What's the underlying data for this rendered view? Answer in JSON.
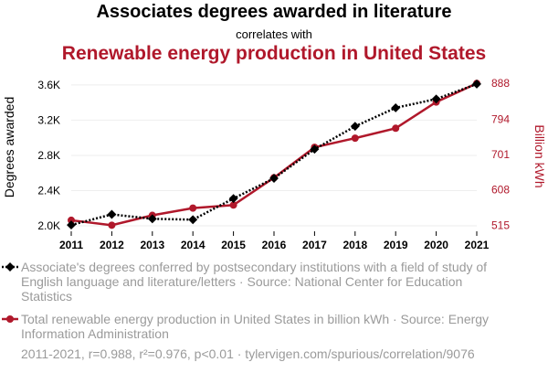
{
  "header": {
    "title": "Associates degrees awarded in literature",
    "connector": "correlates with",
    "subtitle": "Renewable energy production in United States"
  },
  "colors": {
    "series1": "#000000",
    "series2": "#b0182b",
    "legend_text": "#9a9a9a"
  },
  "chart_data": {
    "type": "line",
    "x": [
      2011,
      2012,
      2013,
      2014,
      2015,
      2016,
      2017,
      2018,
      2019,
      2020,
      2021
    ],
    "xlim": [
      2011,
      2021
    ],
    "grid": true,
    "left_axis": {
      "label": "Degrees awarded",
      "ticks": [
        2000,
        2400,
        2800,
        3200,
        3600
      ],
      "tick_labels": [
        "2.0K",
        "2.4K",
        "2.8K",
        "3.2K",
        "3.6K"
      ],
      "ylim": [
        1990,
        3630
      ]
    },
    "right_axis": {
      "label": "Billion kWh",
      "ticks": [
        515,
        608,
        701,
        794,
        888
      ],
      "tick_labels": [
        "515",
        "608",
        "701",
        "794",
        "888"
      ],
      "ylim": [
        511,
        891
      ]
    },
    "series": [
      {
        "name": "Associate's degrees conferred by postsecondary institutions with a field of study of English language and literature/letters · Source: National Center for Education Statistics",
        "axis": "left",
        "style": "dotted",
        "marker": "diamond",
        "values": [
          2010,
          2130,
          2080,
          2070,
          2310,
          2540,
          2870,
          3130,
          3340,
          3440,
          3610
        ]
      },
      {
        "name": "Total renewable energy production in United States in billion kWh · Source: Energy Information Administration",
        "axis": "right",
        "style": "solid",
        "marker": "circle",
        "values": [
          528,
          515,
          541,
          560,
          568,
          640,
          720,
          744,
          770,
          839,
          888
        ]
      }
    ]
  },
  "footer": {
    "text": "2011-2021, r=0.988, r²=0.976, p<0.01 · tylervigen.com/spurious/correlation/9076"
  }
}
